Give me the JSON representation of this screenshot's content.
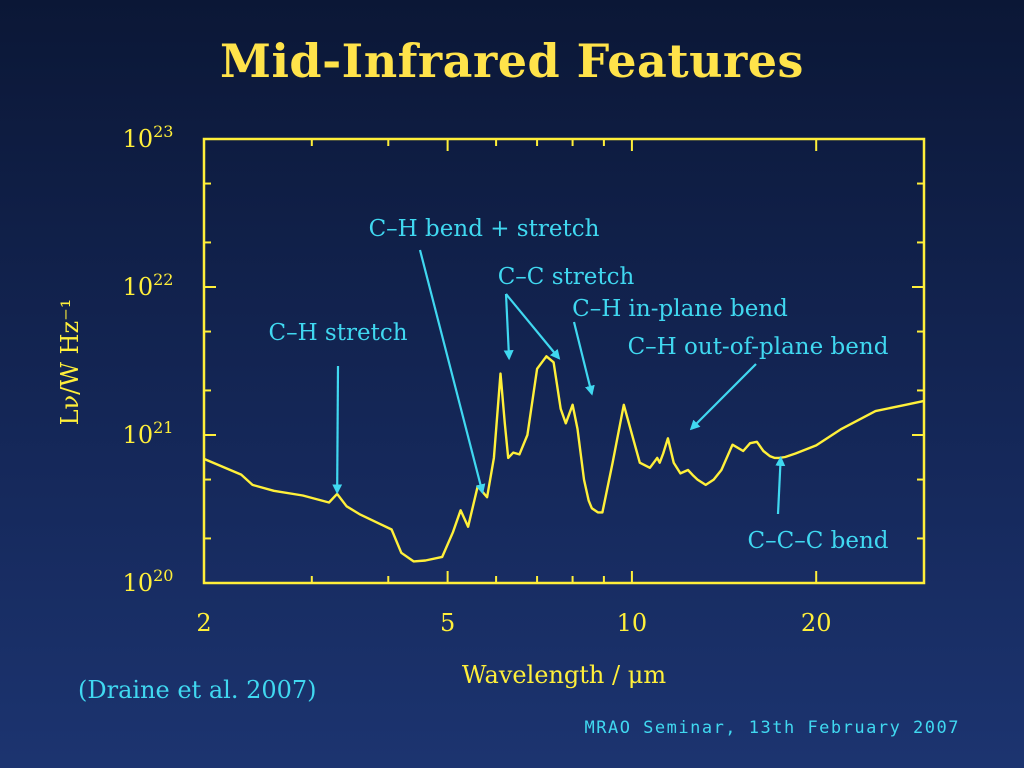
{
  "slide": {
    "title": "Mid-Infrared Features",
    "citation": "(Draine et al. 2007)",
    "footer": "MRAO Seminar, 13th February 2007"
  },
  "colors": {
    "title": "#ffe34a",
    "axes": "#ffef3a",
    "curve": "#fff03a",
    "annotation": "#40d8f0",
    "background_top": "#0b1736",
    "background_bottom": "#1c3470"
  },
  "chart_data": {
    "type": "line",
    "title": "",
    "xlabel": "Wavelength / μm",
    "ylabel": "Lν/W Hz⁻¹",
    "xscale": "log",
    "yscale": "log",
    "xlim": [
      2,
      30
    ],
    "ylim": [
      1e+20,
      1e+23
    ],
    "x_tick_labels": [
      {
        "value": 2,
        "label": "2"
      },
      {
        "value": 5,
        "label": "5"
      },
      {
        "value": 10,
        "label": "10"
      },
      {
        "value": 20,
        "label": "20"
      }
    ],
    "y_tick_labels": [
      {
        "value": 1e+20,
        "base": "10",
        "exp": "20"
      },
      {
        "value": 1e+21,
        "base": "10",
        "exp": "21"
      },
      {
        "value": 1e+22,
        "base": "10",
        "exp": "22"
      },
      {
        "value": 1e+23,
        "base": "10",
        "exp": "23"
      }
    ],
    "grid": false,
    "series": [
      {
        "x": [
          2.0,
          2.3,
          2.4,
          2.6,
          2.9,
          3.2,
          3.3,
          3.42,
          3.6,
          4.05,
          4.2,
          4.4,
          4.6,
          4.9,
          5.1,
          5.25,
          5.4,
          5.6,
          5.8,
          5.95,
          6.1,
          6.2,
          6.28,
          6.4,
          6.55,
          6.75,
          7.0,
          7.25,
          7.45,
          7.65,
          7.8,
          8.0,
          8.15,
          8.35,
          8.5,
          8.6,
          8.8,
          8.95,
          9.3,
          9.7,
          10.3,
          10.7,
          11.0,
          11.1,
          11.25,
          11.45,
          11.7,
          12.0,
          12.35,
          12.6,
          12.8,
          13.2,
          13.6,
          14.0,
          14.6,
          15.2,
          15.6,
          16.0,
          16.4,
          16.8,
          17.1,
          17.4,
          17.8,
          18.5,
          20.0,
          22.0,
          25.0,
          28.0,
          30.0
        ],
        "y": [
          6.9e+20,
          5.4e+20,
          4.6e+20,
          4.2e+20,
          3.9e+20,
          3.5e+20,
          4e+20,
          3.3e+20,
          2.9e+20,
          2.3e+20,
          1.6e+20,
          1.4e+20,
          1.42e+20,
          1.5e+20,
          2.2e+20,
          3.1e+20,
          2.4e+20,
          4.5e+20,
          3.8e+20,
          7e+20,
          2.6e+21,
          1.2e+21,
          7e+20,
          7.6e+20,
          7.4e+20,
          1e+21,
          2.8e+21,
          3.4e+21,
          3.1e+21,
          1.5e+21,
          1.2e+21,
          1.6e+21,
          1.1e+21,
          5e+20,
          3.6e+20,
          3.2e+20,
          3e+20,
          3e+20,
          6.5e+20,
          1.6e+21,
          6.5e+20,
          6e+20,
          7e+20,
          6.5e+20,
          7.5e+20,
          9.5e+20,
          6.5e+20,
          5.5e+20,
          5.8e+20,
          5.3e+20,
          5e+20,
          4.6e+20,
          5e+20,
          5.8e+20,
          8.6e+20,
          7.8e+20,
          8.8e+20,
          9e+20,
          7.8e+20,
          7.2e+20,
          7e+20,
          7e+20,
          7.1e+20,
          7.5e+20,
          8.5e+20,
          1.1e+21,
          1.45e+21,
          1.6e+21,
          1.7e+21
        ]
      }
    ],
    "annotations": [
      {
        "id": "ch-stretch",
        "text": "C–H stretch",
        "point_x": 3.3,
        "point_y": 4.1e+20
      },
      {
        "id": "ch-bend-stretch",
        "text": "C–H bend + stretch",
        "point_x": 5.7,
        "point_y": 4.1e+20
      },
      {
        "id": "cc-stretch",
        "text": "C–C stretch",
        "point_x": 6.3,
        "point_y": 3.3e+21,
        "point2_x": 7.6,
        "point2_y": 3.3e+21
      },
      {
        "id": "ch-in-plane-bend",
        "text": "C–H in-plane bend",
        "point_x": 8.6,
        "point_y": 1.9e+21
      },
      {
        "id": "ch-out-of-plane-bend",
        "text": "C–H out-of-plane bend",
        "point_x": 12.5,
        "point_y": 1.1e+21
      },
      {
        "id": "ccc-bend",
        "text": "C–C–C bend",
        "point_x": 17.5,
        "point_y": 7e+20
      }
    ]
  }
}
